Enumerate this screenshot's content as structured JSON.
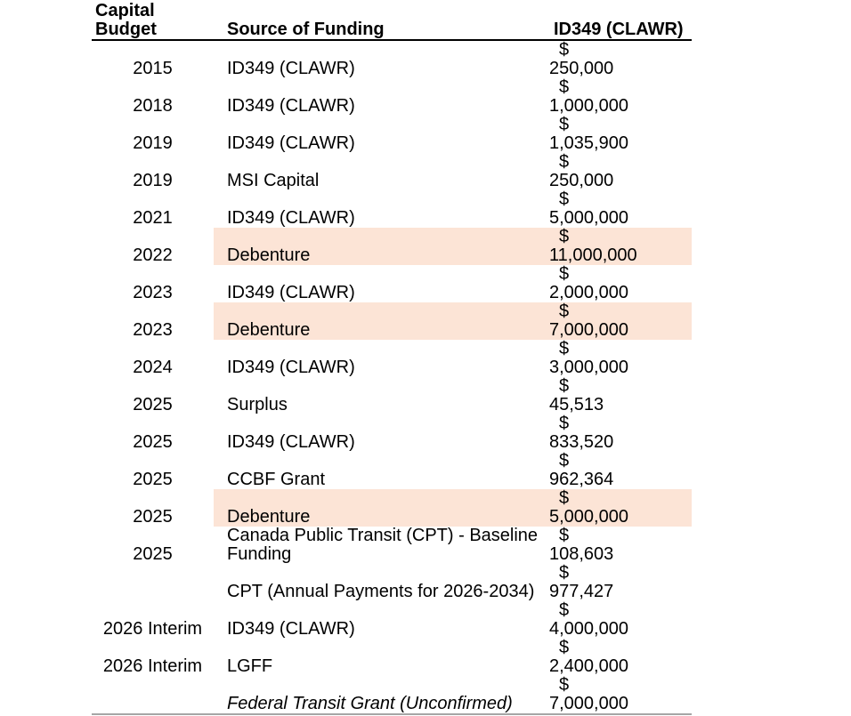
{
  "table": {
    "header": {
      "capital_budget": "Capital\nBudget",
      "source_of_funding": "Source of Funding",
      "amount_column": "ID349 (CLAWR)"
    },
    "currency_symbol": "$",
    "highlight_color": "#fce4d6",
    "header_rule_color": "#000000",
    "bottom_rule_color": "#a6a6a6",
    "rows": [
      {
        "year": "2015",
        "source": "ID349 (CLAWR)",
        "amount": "250,000",
        "highlight": false,
        "italic": false
      },
      {
        "year": "2018",
        "source": "ID349 (CLAWR)",
        "amount": "1,000,000",
        "highlight": false,
        "italic": false
      },
      {
        "year": "2019",
        "source": "ID349 (CLAWR)",
        "amount": "1,035,900",
        "highlight": false,
        "italic": false
      },
      {
        "year": "2019",
        "source": "MSI Capital",
        "amount": "250,000",
        "highlight": false,
        "italic": false
      },
      {
        "year": "2021",
        "source": "ID349 (CLAWR)",
        "amount": "5,000,000",
        "highlight": false,
        "italic": false
      },
      {
        "year": "2022",
        "source": "Debenture",
        "amount": "11,000,000",
        "highlight": true,
        "italic": false
      },
      {
        "year": "2023",
        "source": "ID349 (CLAWR)",
        "amount": "2,000,000",
        "highlight": false,
        "italic": false
      },
      {
        "year": "2023",
        "source": "Debenture",
        "amount": "7,000,000",
        "highlight": true,
        "italic": false
      },
      {
        "year": "2024",
        "source": "ID349 (CLAWR)",
        "amount": "3,000,000",
        "highlight": false,
        "italic": false
      },
      {
        "year": "2025",
        "source": "Surplus",
        "amount": "45,513",
        "highlight": false,
        "italic": false
      },
      {
        "year": "2025",
        "source": "ID349 (CLAWR)",
        "amount": "833,520",
        "highlight": false,
        "italic": false
      },
      {
        "year": "2025",
        "source": "CCBF Grant",
        "amount": "962,364",
        "highlight": false,
        "italic": false
      },
      {
        "year": "2025",
        "source": "Debenture",
        "amount": "5,000,000",
        "highlight": true,
        "italic": false
      },
      {
        "year": "2025",
        "source": "Canada Public Transit (CPT) - Baseline\nFunding",
        "amount": "108,603",
        "highlight": false,
        "italic": false
      },
      {
        "year": "",
        "source": "CPT (Annual Payments for 2026-2034)",
        "amount": "977,427",
        "highlight": false,
        "italic": false
      },
      {
        "year": "2026 Interim",
        "source": "ID349 (CLAWR)",
        "amount": "4,000,000",
        "highlight": false,
        "italic": false
      },
      {
        "year": "2026 Interim",
        "source": "LGFF",
        "amount": "2,400,000",
        "highlight": false,
        "italic": false
      },
      {
        "year": "",
        "source": "Federal Transit Grant (Unconfirmed)",
        "amount": "7,000,000",
        "highlight": false,
        "italic": true
      }
    ]
  }
}
